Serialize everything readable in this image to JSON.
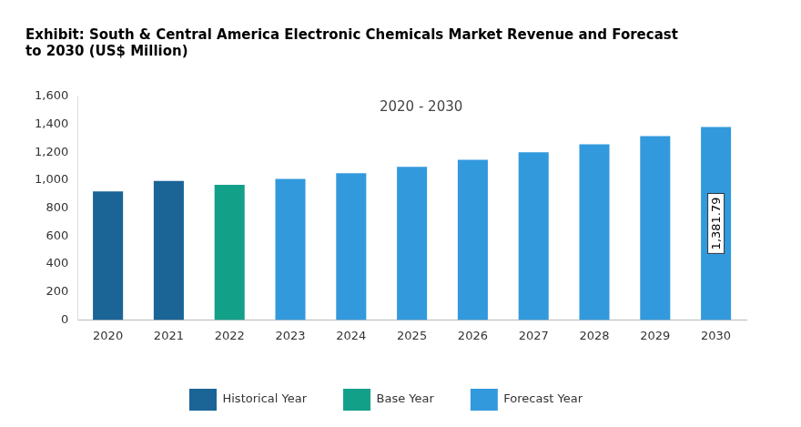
{
  "chart_data": {
    "type": "bar",
    "title": [
      "Exhibit: South & Central America Electronic Chemicals Market Revenue and Forecast",
      "to 2030 (US$ Million)"
    ],
    "annotation": "2020 - 2030",
    "categories": [
      "2020",
      "2021",
      "2022",
      "2023",
      "2024",
      "2025",
      "2026",
      "2027",
      "2028",
      "2029",
      "2030"
    ],
    "series": [
      {
        "name": "Historical Year",
        "color": "#1a6496",
        "values": [
          920,
          995,
          null,
          null,
          null,
          null,
          null,
          null,
          null,
          null,
          null
        ]
      },
      {
        "name": "Base Year",
        "color": "#13a089",
        "values": [
          null,
          null,
          968,
          null,
          null,
          null,
          null,
          null,
          null,
          null,
          null
        ]
      },
      {
        "name": "Forecast Year",
        "color": "#3399dd",
        "values": [
          null,
          null,
          null,
          1010,
          1050,
          1097,
          1147,
          1200,
          1257,
          1317,
          1381.79
        ],
        "value_labels": [
          null,
          null,
          null,
          null,
          null,
          null,
          null,
          null,
          null,
          null,
          "1,381.79"
        ]
      }
    ],
    "data_labels": true,
    "ylim": [
      0,
      1600
    ],
    "yticks": [
      0,
      200,
      400,
      600,
      800,
      {
        "value": 1000,
        "label": "1,000"
      },
      {
        "value": 1200,
        "label": "1,200"
      },
      {
        "value": 1400,
        "label": "1,400"
      },
      {
        "value": 1600,
        "label": "1,600"
      }
    ],
    "grid": false,
    "legend": "bottom"
  }
}
